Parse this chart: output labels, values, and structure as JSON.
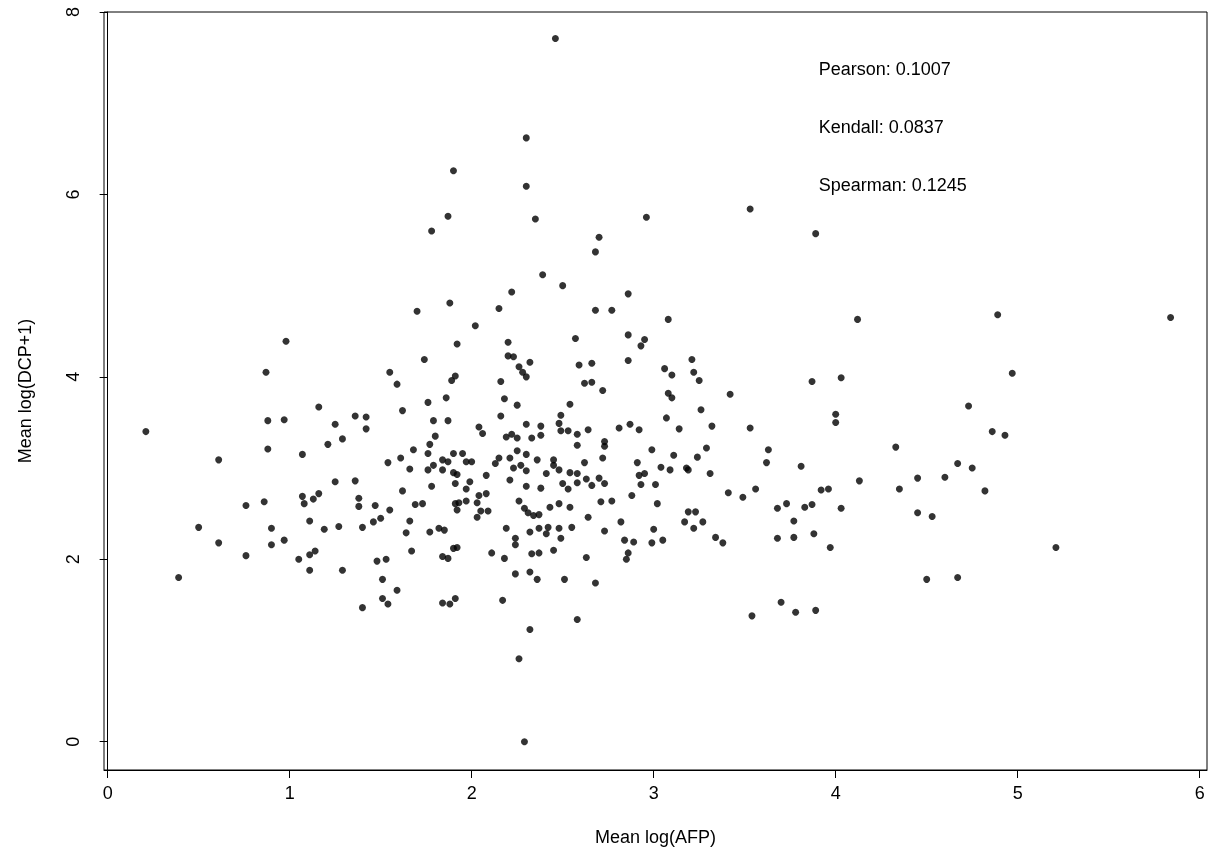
{
  "chart_data": {
    "type": "scatter",
    "xlabel": "Mean log(AFP)",
    "ylabel": "Mean log(DCP+1)",
    "annotations": [
      "Pearson: 0.1007",
      "Kendall: 0.0837",
      "Spearman: 0.1245"
    ],
    "xlim": [
      -0.02,
      6.04
    ],
    "xticks": [
      0,
      1,
      2,
      3,
      4,
      5,
      6
    ],
    "ylim": [
      -0.31,
      8
    ],
    "yticks": [
      0,
      2,
      4,
      6,
      8
    ],
    "marker": "circle",
    "series": [
      {
        "color": "#000000",
        "x": [
          0.98,
          0.87,
          1.55,
          1.59,
          1.16,
          0.88,
          0.97,
          1.36,
          1.42,
          1.25,
          1.42,
          1.29,
          1.21,
          0.88,
          0.61,
          1.07,
          1.54,
          1.25,
          1.36,
          1.07,
          1.08,
          1.13,
          1.16,
          1.38,
          1.38,
          1.47,
          1.55,
          0.86,
          0.76,
          0.5,
          0.9,
          1.11,
          1.19,
          1.27,
          1.4,
          1.46,
          1.5,
          0.61,
          0.9,
          0.97,
          0.76,
          1.05,
          1.11,
          1.14,
          1.48,
          1.53,
          0.39,
          1.11,
          1.29,
          1.51,
          1.59,
          1.51,
          1.54,
          1.4,
          0.21,
          1.9,
          2.3,
          1.87,
          1.78,
          2.35,
          2.7,
          2.68,
          2.39,
          2.5,
          2.22,
          2.86,
          1.7,
          1.88,
          2.15,
          2.68,
          2.77,
          2.02,
          1.92,
          2.2,
          2.57,
          2.86,
          1.74,
          2.2,
          2.23,
          2.32,
          2.59,
          2.66,
          2.86,
          2.26,
          2.28,
          2.3,
          1.91,
          1.89,
          2.16,
          2.62,
          2.66,
          2.72,
          1.76,
          1.86,
          2.18,
          2.25,
          1.62,
          1.79,
          1.87,
          2.16,
          2.49,
          2.54,
          2.04,
          2.06,
          1.8,
          1.77,
          2.19,
          2.22,
          2.25,
          2.3,
          2.33,
          2.38,
          2.38,
          2.48,
          2.49,
          2.53,
          2.58,
          2.58,
          2.64,
          2.73,
          2.73,
          2.81,
          2.87,
          1.68,
          2.46,
          2.3,
          2.96,
          3.53,
          3.89,
          3.08,
          4.12,
          2.95,
          2.93,
          3.21,
          3.06,
          3.22,
          3.1,
          3.25,
          3.87,
          4.03,
          3.42,
          3.08,
          3.1,
          3.26,
          4.0,
          4.0,
          3.07,
          2.92,
          3.14,
          3.32,
          3.53,
          2.99,
          3.29,
          3.63,
          4.33,
          3.11,
          2.91,
          3.62,
          3.24,
          2.92,
          2.95,
          3.04,
          3.09,
          3.18,
          3.19,
          3.31,
          3.81,
          4.13,
          2.93,
          3.01,
          2.88,
          3.41,
          3.49,
          3.56,
          3.92,
          3.96,
          4.35,
          4.45,
          3.02,
          3.68,
          3.73,
          3.83,
          3.87,
          4.03,
          4.45,
          3.19,
          3.23,
          3.17,
          3.27,
          3.22,
          2.82,
          3.77,
          3.0,
          2.84,
          2.89,
          2.99,
          3.05,
          3.34,
          3.38,
          3.68,
          3.77,
          3.88,
          3.97,
          2.86,
          2.85,
          3.7,
          3.78,
          3.89,
          3.54,
          4.89,
          5.84,
          4.97,
          4.73,
          4.86,
          4.93,
          4.67,
          4.75,
          4.6,
          4.82,
          4.53,
          5.21,
          4.5,
          4.67,
          2.29,
          2.26,
          2.32,
          2.58,
          1.84,
          1.88,
          1.91,
          2.17,
          2.24,
          2.32,
          2.36,
          2.51,
          2.68,
          1.67,
          1.84,
          1.87,
          1.9,
          1.92,
          2.11,
          2.18,
          2.24,
          2.24,
          2.33,
          2.37,
          2.45,
          2.63,
          1.64,
          1.77,
          1.82,
          1.85,
          2.19,
          2.32,
          2.37,
          2.41,
          2.42,
          2.48,
          2.49,
          2.55,
          2.64,
          2.73,
          1.66,
          1.69,
          1.73,
          1.91,
          1.93,
          1.92,
          1.97,
          2.03,
          2.03,
          2.05,
          2.09,
          2.04,
          2.08,
          2.26,
          2.29,
          2.31,
          2.34,
          2.37,
          2.43,
          2.48,
          2.54,
          2.71,
          2.77,
          1.62,
          1.78,
          1.91,
          1.97,
          1.99,
          2.21,
          2.3,
          2.38,
          2.5,
          2.53,
          2.58,
          2.63,
          2.66,
          2.73,
          1.66,
          1.76,
          1.79,
          1.84,
          1.84,
          1.87,
          1.9,
          1.92,
          1.97,
          2.0,
          2.08,
          2.13,
          2.15,
          2.21,
          2.23,
          2.27,
          2.3,
          2.36,
          2.41,
          2.45,
          2.48,
          2.54,
          2.58,
          2.62,
          2.7,
          2.72,
          1.61,
          1.76,
          1.9,
          1.95,
          2.25,
          2.3,
          2.45
        ],
        "values": [
          4.39,
          4.05,
          4.05,
          3.92,
          3.67,
          3.52,
          3.53,
          3.57,
          3.56,
          3.48,
          3.43,
          3.32,
          3.26,
          3.21,
          3.09,
          3.15,
          3.06,
          2.85,
          2.86,
          2.69,
          2.61,
          2.66,
          2.72,
          2.67,
          2.58,
          2.59,
          2.54,
          2.63,
          2.59,
          2.35,
          2.34,
          2.42,
          2.33,
          2.36,
          2.35,
          2.41,
          2.45,
          2.18,
          2.16,
          2.21,
          2.04,
          2.0,
          2.05,
          2.09,
          1.98,
          2.0,
          1.8,
          1.88,
          1.88,
          1.78,
          1.66,
          1.57,
          1.51,
          1.47,
          3.4,
          6.26,
          6.09,
          5.76,
          5.6,
          5.73,
          5.53,
          5.37,
          5.12,
          5.0,
          4.93,
          4.91,
          4.72,
          4.81,
          4.75,
          4.73,
          4.73,
          4.56,
          4.36,
          4.38,
          4.42,
          4.46,
          4.19,
          4.23,
          4.22,
          4.16,
          4.13,
          4.15,
          4.18,
          4.11,
          4.05,
          4.0,
          4.01,
          3.96,
          3.95,
          3.93,
          3.94,
          3.85,
          3.72,
          3.77,
          3.76,
          3.69,
          3.63,
          3.52,
          3.52,
          3.57,
          3.58,
          3.7,
          3.45,
          3.38,
          3.35,
          3.26,
          3.34,
          3.37,
          3.33,
          3.48,
          3.33,
          3.46,
          3.36,
          3.49,
          3.41,
          3.41,
          3.37,
          3.25,
          3.42,
          3.29,
          3.24,
          3.44,
          3.48,
          3.2,
          7.71,
          6.62,
          5.75,
          5.84,
          5.57,
          4.63,
          4.63,
          4.41,
          4.34,
          4.19,
          4.09,
          4.05,
          4.02,
          3.96,
          3.95,
          3.99,
          3.81,
          3.82,
          3.77,
          3.64,
          3.59,
          3.5,
          3.55,
          3.42,
          3.43,
          3.46,
          3.44,
          3.2,
          3.22,
          3.2,
          3.23,
          3.14,
          3.06,
          3.06,
          3.12,
          2.92,
          2.94,
          3.01,
          2.98,
          3.0,
          2.98,
          2.94,
          3.02,
          2.86,
          2.82,
          2.82,
          2.7,
          2.73,
          2.68,
          2.77,
          2.76,
          2.77,
          2.77,
          2.89,
          2.61,
          2.56,
          2.61,
          2.57,
          2.6,
          2.56,
          2.51,
          2.52,
          2.52,
          2.41,
          2.41,
          2.34,
          2.41,
          2.42,
          2.33,
          2.21,
          2.19,
          2.18,
          2.21,
          2.24,
          2.18,
          2.23,
          2.24,
          2.28,
          2.13,
          2.07,
          2.0,
          1.53,
          1.42,
          1.44,
          1.38,
          4.68,
          4.65,
          4.04,
          3.68,
          3.4,
          3.36,
          3.05,
          3.0,
          2.9,
          2.75,
          2.47,
          2.13,
          1.78,
          1.8,
          0,
          0.91,
          1.23,
          1.34,
          1.52,
          1.51,
          1.57,
          1.55,
          1.84,
          1.86,
          1.78,
          1.78,
          1.74,
          2.09,
          2.03,
          2.01,
          2.12,
          2.13,
          2.07,
          2.01,
          2.16,
          2.23,
          2.06,
          2.07,
          2.1,
          2.02,
          2.29,
          2.3,
          2.34,
          2.32,
          2.34,
          2.3,
          2.34,
          2.28,
          2.35,
          2.34,
          2.23,
          2.35,
          2.46,
          2.31,
          2.42,
          2.6,
          2.61,
          2.61,
          2.62,
          2.54,
          2.64,
          2.62,
          2.46,
          2.53,
          2.53,
          2.7,
          2.72,
          2.64,
          2.56,
          2.51,
          2.48,
          2.49,
          2.57,
          2.61,
          2.57,
          2.63,
          2.64,
          2.75,
          2.8,
          2.83,
          2.77,
          2.85,
          2.87,
          2.8,
          2.78,
          2.83,
          2.77,
          2.84,
          2.88,
          2.81,
          2.83,
          2.99,
          2.98,
          3.03,
          2.98,
          3.09,
          3.07,
          2.95,
          2.93,
          3.07,
          3.07,
          2.92,
          3.05,
          3.11,
          3.11,
          3.0,
          3.03,
          2.97,
          3.09,
          2.94,
          3.03,
          2.98,
          2.95,
          2.94,
          3.06,
          2.89,
          3.11,
          3.11,
          3.16,
          3.16,
          3.16,
          3.19,
          3.15,
          3.09
        ]
      }
    ]
  }
}
